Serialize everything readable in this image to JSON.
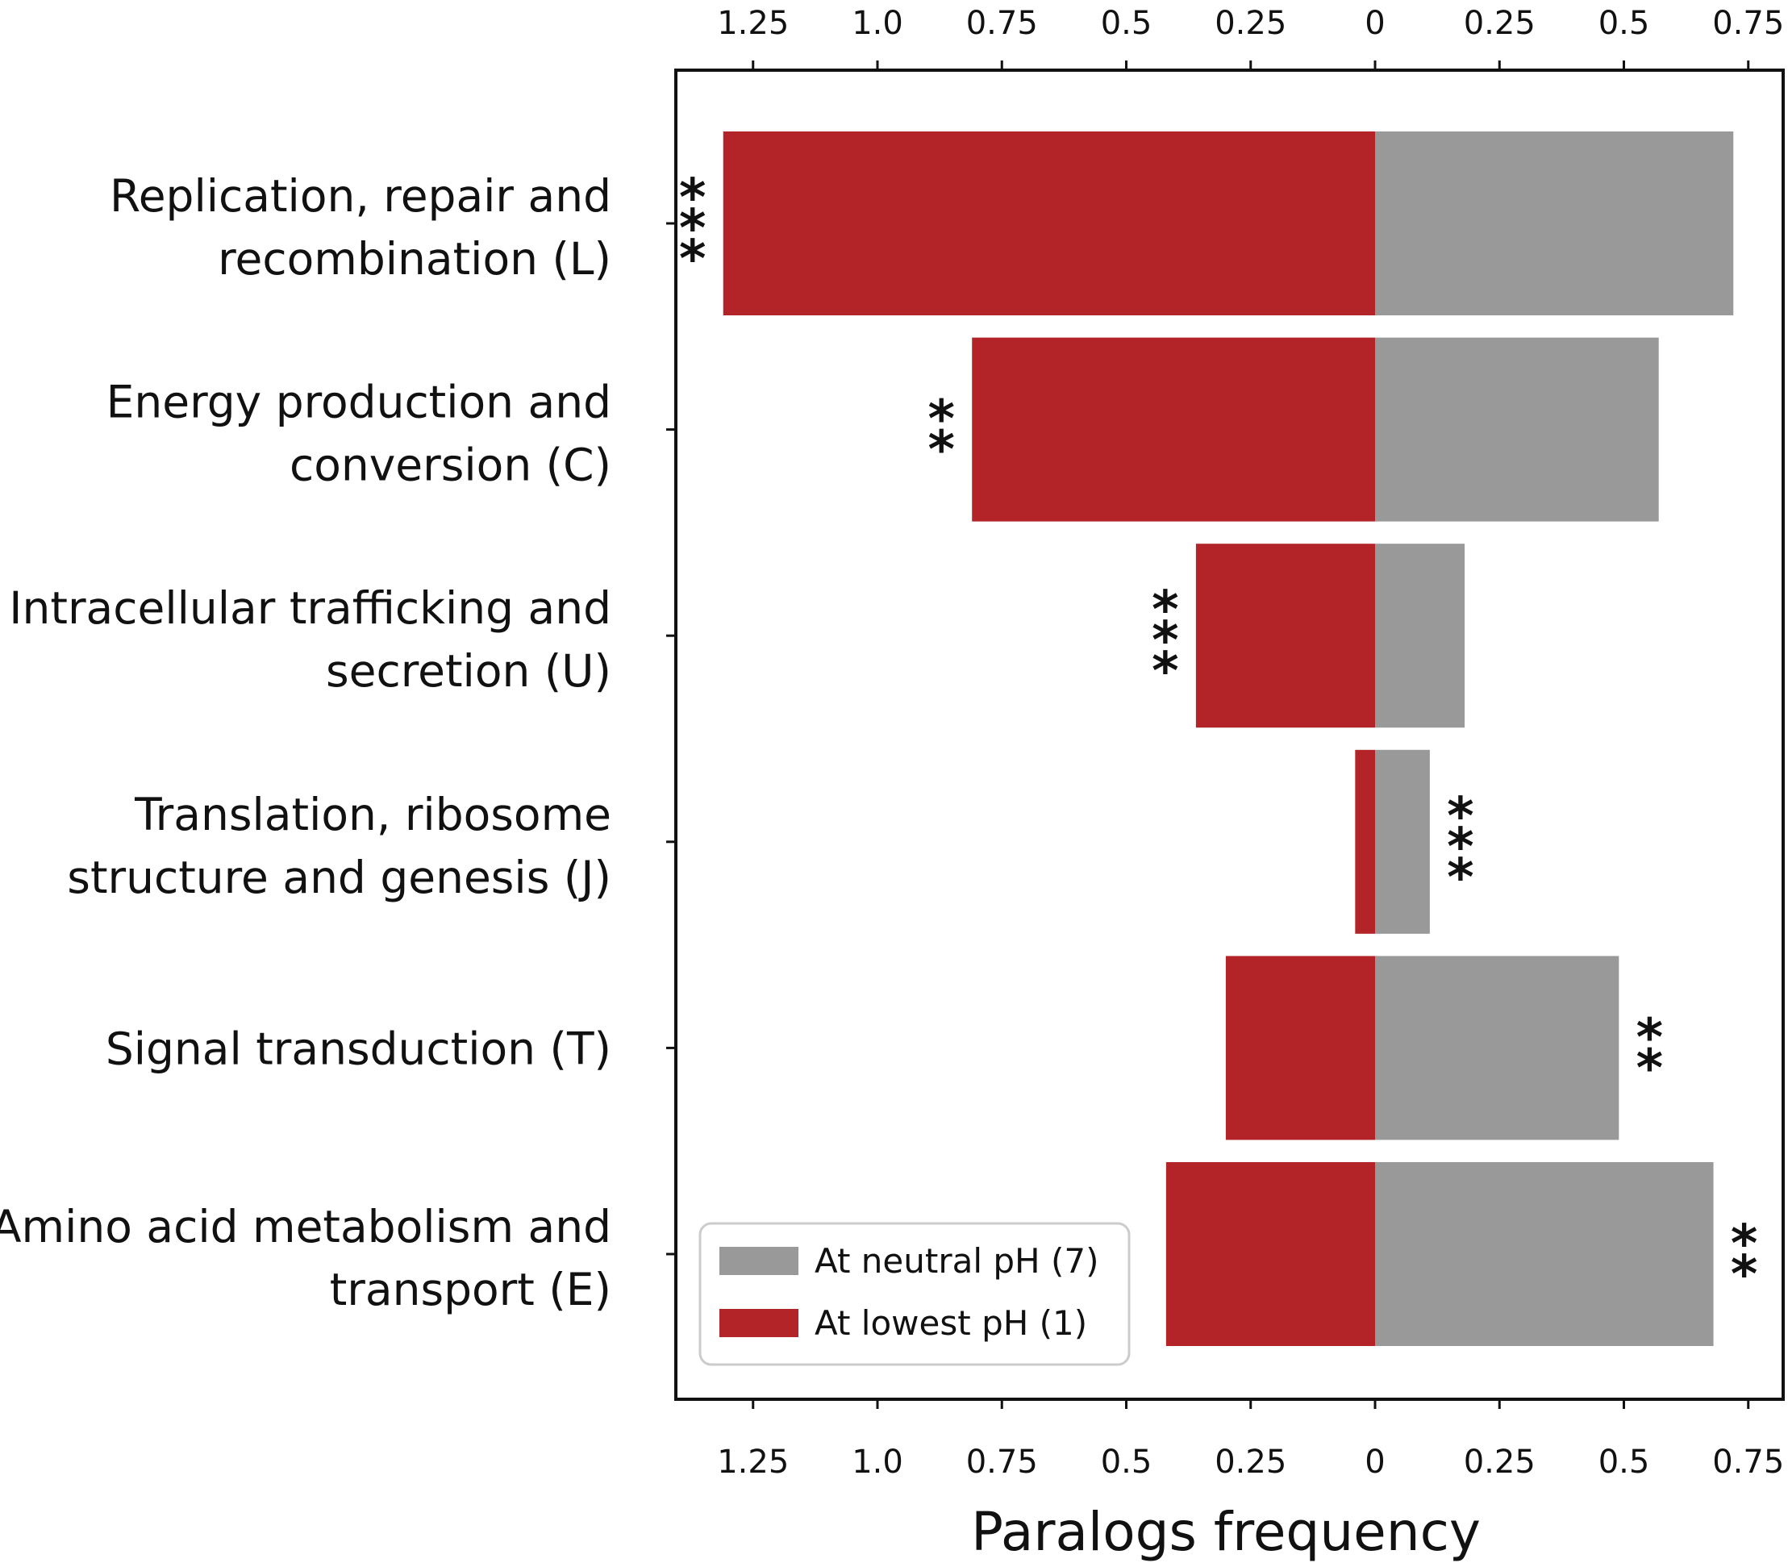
{
  "chart_data": {
    "type": "bar",
    "orientation": "horizontal-diverging",
    "xlabel": "Paralogs frequency",
    "tick_labels": [
      "1.25",
      "1.0",
      "0.75",
      "0.5",
      "0.25",
      "0",
      "0.25",
      "0.5",
      "0.75"
    ],
    "tick_values": [
      -1.25,
      -1.0,
      -0.75,
      -0.5,
      -0.25,
      0,
      0.25,
      0.5,
      0.75
    ],
    "xlim": [
      -1.43,
      0.82
    ],
    "categories": [
      {
        "line1": "Replication, repair and",
        "line2": "recombination (L)"
      },
      {
        "line1": "Energy production and",
        "line2": "conversion (C)"
      },
      {
        "line1": "Intracellular trafficking and",
        "line2": "secretion (U)"
      },
      {
        "line1": "Translation, ribosome",
        "line2": "structure and genesis (J)"
      },
      {
        "line1": "Signal transduction (T)",
        "line2": ""
      },
      {
        "line1": "Amino acid metabolism and",
        "line2": "transport (E)"
      }
    ],
    "series": [
      {
        "name": "At lowest pH (1)",
        "color": "#b22428",
        "side": "left",
        "values": [
          1.31,
          0.81,
          0.36,
          0.04,
          0.3,
          0.42
        ]
      },
      {
        "name": "At neutral pH (7)",
        "color": "#999999",
        "side": "right",
        "values": [
          0.72,
          0.57,
          0.18,
          0.11,
          0.49,
          0.68
        ]
      }
    ],
    "significance": [
      {
        "label": "***",
        "side": "left"
      },
      {
        "label": "**",
        "side": "left"
      },
      {
        "label": "***",
        "side": "left"
      },
      {
        "label": "***",
        "side": "right"
      },
      {
        "label": "**",
        "side": "right"
      },
      {
        "label": "**",
        "side": "right"
      }
    ],
    "legend": {
      "position": "lower-left",
      "entries": [
        "At neutral pH (7)",
        "At lowest pH (1)"
      ]
    }
  }
}
